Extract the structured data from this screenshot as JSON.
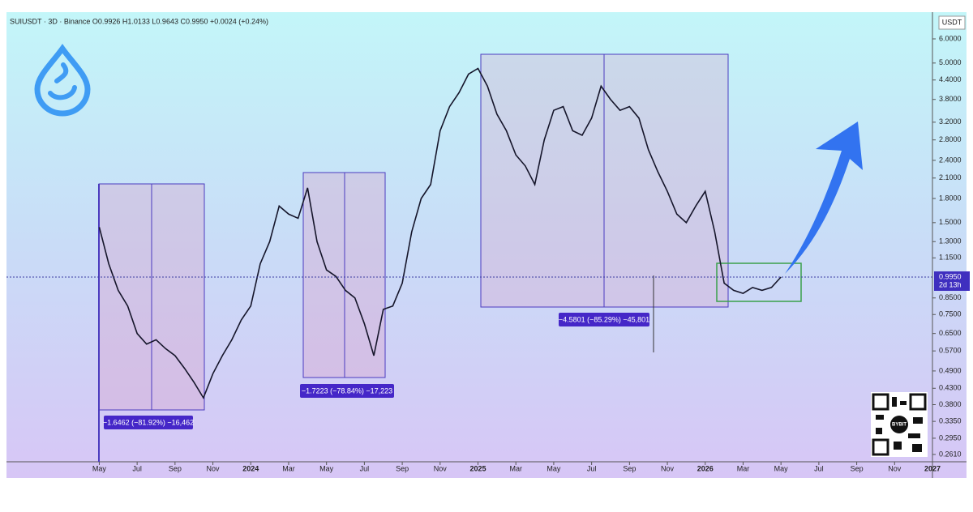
{
  "chart_data": {
    "type": "line",
    "header": "SUIUSDT · 3D · Binance  O0.9926  H1.0133  L0.9643  C0.9950  +0.0024 (+0.24%)",
    "currency": "USDT",
    "log_scale": true,
    "x": [
      0,
      0.5,
      1,
      1.5,
      2,
      2.5,
      3,
      3.5,
      4,
      4.5,
      5,
      5.5,
      6,
      6.5,
      7,
      7.5,
      8,
      8.5,
      9,
      9.5,
      10,
      10.5,
      11,
      11.5,
      12,
      12.5,
      13,
      13.5,
      14,
      14.5,
      15,
      15.5,
      16,
      16.5,
      17,
      17.5,
      18,
      18.5,
      19,
      19.5,
      20,
      20.5,
      21,
      21.5,
      22,
      22.5,
      23,
      23.5,
      24,
      24.5,
      25,
      25.5,
      26,
      26.5,
      27,
      27.5,
      28,
      28.5,
      29,
      29.5,
      30,
      30.5,
      31,
      31.5,
      32,
      32.5,
      33,
      33.5,
      34,
      34.5,
      35,
      35.5,
      36
    ],
    "series": [
      {
        "name": "SUIUSDT",
        "color": "#15152a",
        "values": [
          1.45,
          1.1,
          0.9,
          0.8,
          0.65,
          0.6,
          0.62,
          0.58,
          0.55,
          0.5,
          0.45,
          0.4,
          0.48,
          0.55,
          0.62,
          0.72,
          0.8,
          1.1,
          1.3,
          1.7,
          1.6,
          1.55,
          1.95,
          1.3,
          1.05,
          1.0,
          0.9,
          0.85,
          0.7,
          0.55,
          0.78,
          0.8,
          0.95,
          1.4,
          1.8,
          2.0,
          3.0,
          3.6,
          4.0,
          4.6,
          4.8,
          4.2,
          3.4,
          3.0,
          2.5,
          2.3,
          2.0,
          2.8,
          3.5,
          3.6,
          3.0,
          2.9,
          3.3,
          4.2,
          3.8,
          3.5,
          3.6,
          3.3,
          2.6,
          2.2,
          1.9,
          1.6,
          1.5,
          1.7,
          1.9,
          1.4,
          0.95,
          0.9,
          0.88,
          0.92,
          0.9,
          0.92,
          0.995
        ]
      }
    ],
    "xlim": [
      -4.9,
      44
    ],
    "xticks": [
      {
        "value": 0,
        "label": "May"
      },
      {
        "value": 2,
        "label": "Jul"
      },
      {
        "value": 4,
        "label": "Sep"
      },
      {
        "value": 6,
        "label": "Nov"
      },
      {
        "value": 8,
        "label": "2024"
      },
      {
        "value": 10,
        "label": "Mar"
      },
      {
        "value": 12,
        "label": "May"
      },
      {
        "value": 14,
        "label": "Jul"
      },
      {
        "value": 16,
        "label": "Sep"
      },
      {
        "value": 18,
        "label": "Nov"
      },
      {
        "value": 20,
        "label": "2025"
      },
      {
        "value": 22,
        "label": "Mar"
      },
      {
        "value": 24,
        "label": "May"
      },
      {
        "value": 26,
        "label": "Jul"
      },
      {
        "value": 28,
        "label": "Sep"
      },
      {
        "value": 30,
        "label": "Nov"
      },
      {
        "value": 32,
        "label": "2026"
      },
      {
        "value": 34,
        "label": "Mar"
      },
      {
        "value": 36,
        "label": "May"
      },
      {
        "value": 38,
        "label": "Jul"
      },
      {
        "value": 40,
        "label": "Sep"
      },
      {
        "value": 42,
        "label": "Nov"
      },
      {
        "value": 44,
        "label": "2027"
      }
    ],
    "ylim": [
      0.247,
      7.34
    ],
    "yticks": [
      {
        "value": 6,
        "label": "6.0000"
      },
      {
        "value": 5,
        "label": "5.0000"
      },
      {
        "value": 4.4,
        "label": "4.4000"
      },
      {
        "value": 3.8,
        "label": "3.8000"
      },
      {
        "value": 3.2,
        "label": "3.2000"
      },
      {
        "value": 2.8,
        "label": "2.8000"
      },
      {
        "value": 2.4,
        "label": "2.4000"
      },
      {
        "value": 2.1,
        "label": "2.1000"
      },
      {
        "value": 1.8,
        "label": "1.8000"
      },
      {
        "value": 1.5,
        "label": "1.5000"
      },
      {
        "value": 1.3,
        "label": "1.3000"
      },
      {
        "value": 1.15,
        "label": "1.1500"
      },
      {
        "value": 0.85,
        "label": "0.8500"
      },
      {
        "value": 0.75,
        "label": "0.7500"
      },
      {
        "value": 0.65,
        "label": "0.6500"
      },
      {
        "value": 0.57,
        "label": "0.5700"
      },
      {
        "value": 0.49,
        "label": "0.4900"
      },
      {
        "value": 0.43,
        "label": "0.4300"
      },
      {
        "value": 0.38,
        "label": "0.3800"
      },
      {
        "value": 0.335,
        "label": "0.3350"
      },
      {
        "value": 0.295,
        "label": "0.2950"
      },
      {
        "value": 0.261,
        "label": "0.2610"
      }
    ],
    "last_price": {
      "value": 0.995,
      "label": "0.9950"
    },
    "countdown": "2d 13h",
    "annotations": [
      "−1.6462 (−81.92%) −16,462",
      "−1.7223 (−78.84%) −17,223",
      "−4.5801 (−85.29%) −45,801"
    ],
    "qr_text": "BYBIT"
  }
}
